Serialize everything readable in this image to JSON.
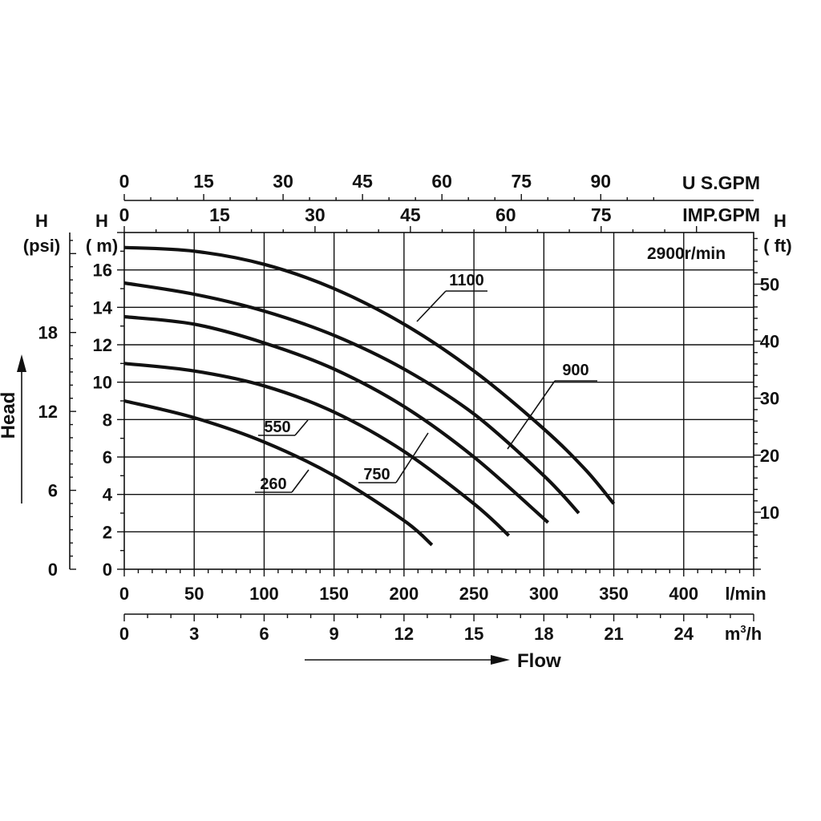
{
  "chart_data": {
    "type": "line",
    "title": "",
    "speed_label": "2900r/min",
    "x": {
      "primary": {
        "unit": "l/min",
        "ticks": [
          "0",
          "50",
          "100",
          "150",
          "200",
          "250",
          "300",
          "350",
          "400"
        ],
        "range": [
          0,
          450
        ]
      },
      "m3h": {
        "unit": "m³/h",
        "unit_base": "m",
        "unit_exp": "3",
        "unit_tail": "/h",
        "ticks": [
          "0",
          "3",
          "6",
          "9",
          "12",
          "15",
          "18",
          "21",
          "24"
        ]
      },
      "us_gpm": {
        "unit": "U S.GPM",
        "ticks": [
          "0",
          "15",
          "30",
          "45",
          "60",
          "75",
          "90"
        ]
      },
      "imp_gpm": {
        "unit": "IMP.GPM",
        "ticks": [
          "0",
          "15",
          "30",
          "45",
          "60",
          "75"
        ]
      },
      "flow_label": "Flow"
    },
    "y": {
      "primary": {
        "title_line1": "H",
        "title_line2": "( m)",
        "ticks": [
          "0",
          "2",
          "4",
          "6",
          "8",
          "10",
          "12",
          "14",
          "16"
        ],
        "range": [
          0,
          18
        ]
      },
      "psi": {
        "title_line1": "H",
        "title_line2": "(psi)",
        "ticks": [
          "0",
          "6",
          "12",
          "18"
        ]
      },
      "ft": {
        "title_line1": "H",
        "title_line2": "( ft)",
        "ticks": [
          "10",
          "20",
          "30",
          "40",
          "50"
        ]
      },
      "head_label": "Head"
    },
    "grid": true,
    "series": [
      {
        "name": "1100",
        "x": [
          0,
          50,
          100,
          150,
          200,
          250,
          300,
          330,
          350
        ],
        "y": [
          17.2,
          17.0,
          16.3,
          15.0,
          13.1,
          10.6,
          7.5,
          5.3,
          3.5
        ]
      },
      {
        "name": "900",
        "x": [
          0,
          50,
          100,
          150,
          200,
          250,
          300,
          325
        ],
        "y": [
          15.3,
          14.7,
          13.8,
          12.5,
          10.7,
          8.3,
          5.0,
          3.0
        ]
      },
      {
        "name": "750",
        "x": [
          0,
          50,
          100,
          150,
          200,
          250,
          303
        ],
        "y": [
          13.5,
          13.1,
          12.1,
          10.7,
          8.7,
          6.0,
          2.5
        ]
      },
      {
        "name": "550",
        "x": [
          0,
          50,
          100,
          150,
          200,
          250,
          275
        ],
        "y": [
          11.0,
          10.6,
          9.8,
          8.4,
          6.3,
          3.5,
          1.8
        ]
      },
      {
        "name": "260",
        "x": [
          0,
          50,
          100,
          150,
          200,
          220
        ],
        "y": [
          9.0,
          8.1,
          6.8,
          5.0,
          2.6,
          1.3
        ]
      }
    ]
  }
}
